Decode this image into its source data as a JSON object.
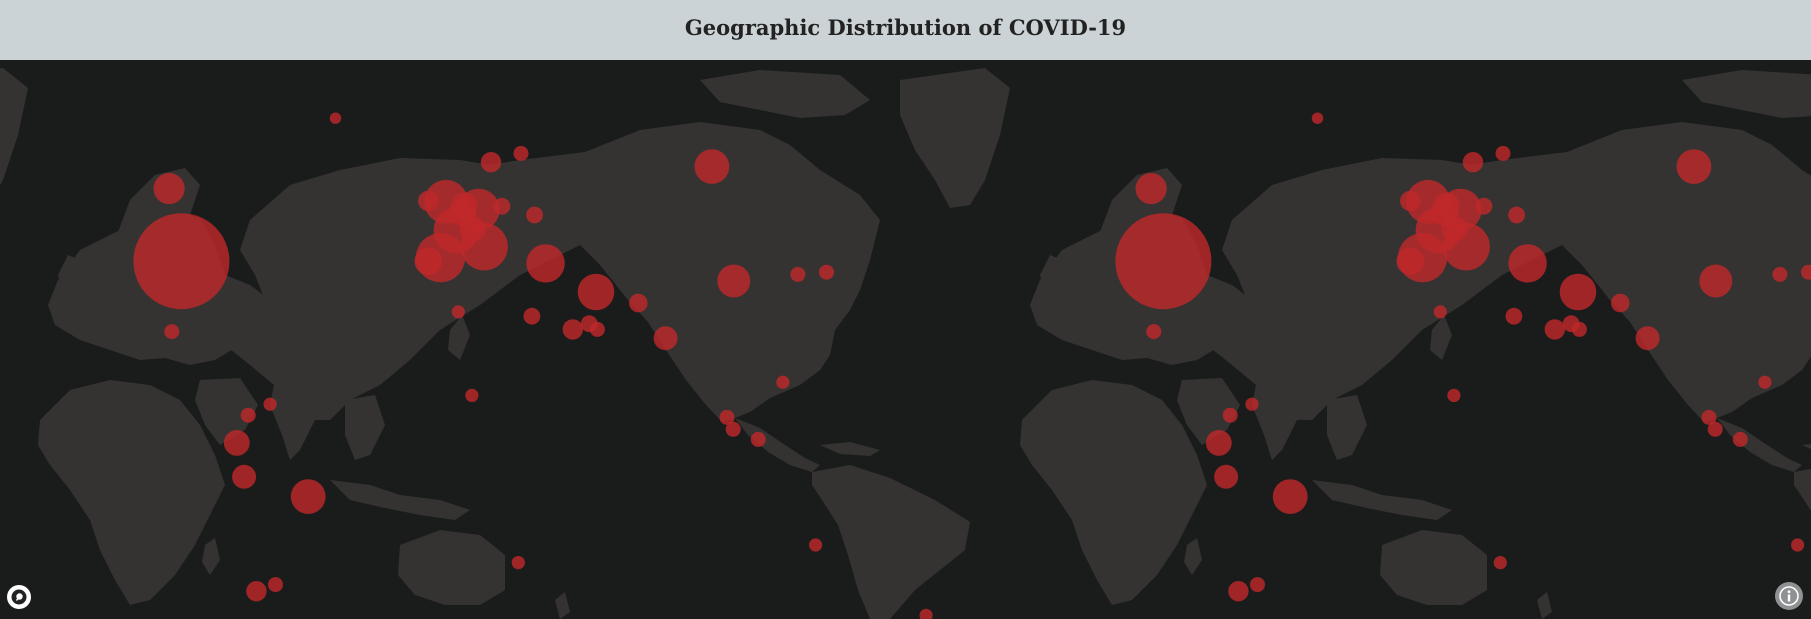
{
  "header": {
    "title": "Geographic Distribution of COVID-19"
  },
  "map": {
    "basemap": "dark",
    "land_color": "#353232",
    "ocean_color": "#1a1c1c",
    "marker_color": "#c0282a",
    "world_copies": 2,
    "markers": [
      {
        "lon": -98.5,
        "lat": 39.5,
        "size": 5
      },
      {
        "lon": -103,
        "lat": 56,
        "size": 1.4
      },
      {
        "lon": -52,
        "lat": -14,
        "size": 1.6
      },
      {
        "lon": -78.2,
        "lat": -1.8,
        "size": 1.1
      },
      {
        "lon": -75.5,
        "lat": -9.5,
        "size": 1.0
      },
      {
        "lon": -71,
        "lat": -35.5,
        "size": 0.8
      },
      {
        "lon": -3.5,
        "lat": 40.3,
        "size": 2.4
      },
      {
        "lon": -1.5,
        "lat": 53,
        "size": 2.1
      },
      {
        "lon": 2.3,
        "lat": 46.5,
        "size": 2.2
      },
      {
        "lon": 10.5,
        "lat": 51.2,
        "size": 2.0
      },
      {
        "lon": 12.5,
        "lat": 42.8,
        "size": 2.3
      },
      {
        "lon": 4.5,
        "lat": 50.6,
        "size": 1.2
      },
      {
        "lon": 5.3,
        "lat": 52.2,
        "size": 1.1
      },
      {
        "lon": 8.2,
        "lat": 46.8,
        "size": 1.1
      },
      {
        "lon": -8,
        "lat": 39.5,
        "size": 1.2
      },
      {
        "lon": -8,
        "lat": 53.2,
        "size": 0.8
      },
      {
        "lon": 15,
        "lat": 62,
        "size": 0.8
      },
      {
        "lon": 35,
        "lat": 39,
        "size": 1.8
      },
      {
        "lon": 53.5,
        "lat": 32.5,
        "size": 1.7
      },
      {
        "lon": 96,
        "lat": 61,
        "size": 1.6
      },
      {
        "lon": 104,
        "lat": 35,
        "size": 1.5
      },
      {
        "lon": 79,
        "lat": 22,
        "size": 1.0
      },
      {
        "lon": 45,
        "lat": 24,
        "size": 0.8
      },
      {
        "lon": 69,
        "lat": 30,
        "size": 0.7
      },
      {
        "lon": 31,
        "lat": 50,
        "size": 0.6
      },
      {
        "lon": 19,
        "lat": 52,
        "size": 0.6
      },
      {
        "lon": 26,
        "lat": 64,
        "size": 0.5
      },
      {
        "lon": 30,
        "lat": 27,
        "size": 0.6
      },
      {
        "lon": 51,
        "lat": 25.3,
        "size": 0.6
      },
      {
        "lon": 54,
        "lat": 24,
        "size": 0.5
      },
      {
        "lon": 127.5,
        "lat": 36.5,
        "size": 0.5
      },
      {
        "lon": 138,
        "lat": 37,
        "size": 0.5
      },
      {
        "lon": 101.5,
        "lat": 4,
        "size": 0.5
      },
      {
        "lon": 103.8,
        "lat": 1.3,
        "size": 0.5
      },
      {
        "lon": 113,
        "lat": -1,
        "size": 0.5
      },
      {
        "lon": 122,
        "lat": 12,
        "size": 0.4
      },
      {
        "lon": 134,
        "lat": -25,
        "size": 0.4
      },
      {
        "lon": -102,
        "lat": 23.5,
        "size": 0.5
      },
      {
        "lon": -74,
        "lat": 4.5,
        "size": 0.5
      },
      {
        "lon": -66,
        "lat": 7,
        "size": 0.4
      },
      {
        "lon": -64,
        "lat": -34,
        "size": 0.5
      },
      {
        "lon": 8,
        "lat": 9,
        "size": 0.4
      },
      {
        "lon": 25,
        "lat": -29,
        "size": 0.4
      },
      {
        "lon": 3,
        "lat": 28,
        "size": 0.4
      },
      {
        "lon": 174.5,
        "lat": -41,
        "size": 0.4
      },
      {
        "lon": -42,
        "lat": 72,
        "size": 0.3
      }
    ]
  },
  "controls": {
    "logo_icon": "mapbox-logo-icon",
    "info_icon": "info-icon"
  }
}
